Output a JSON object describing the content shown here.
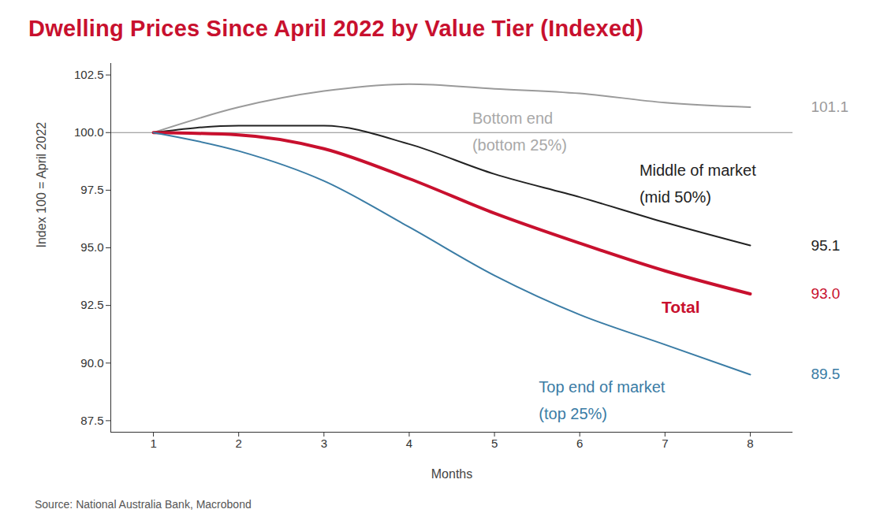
{
  "chart_data": {
    "type": "line",
    "title": "Dwelling Prices Since April 2022 by Value Tier (Indexed)",
    "x_label": "Months",
    "y_label": "Index 100 = April 2022",
    "source": "Source: National Australia Bank, Macrobond",
    "x": [
      1,
      2,
      3,
      4,
      5,
      6,
      7,
      8
    ],
    "xlim": [
      0.5,
      8.5
    ],
    "xticks": [
      1,
      2,
      3,
      4,
      5,
      6,
      7,
      8
    ],
    "ylim": [
      87,
      103
    ],
    "yticks": [
      {
        "value": 87.5,
        "label": "87.5"
      },
      {
        "value": 90,
        "label": "90.0"
      },
      {
        "value": 92.5,
        "label": "92.5"
      },
      {
        "value": 95,
        "label": "95.0"
      },
      {
        "value": 97.5,
        "label": "97.5"
      },
      {
        "value": 100,
        "label": "100.0"
      },
      {
        "value": 102.5,
        "label": "102.5"
      }
    ],
    "reference_line": 100,
    "grid": false,
    "series": [
      {
        "name": "Bottom end (bottom 25%)",
        "color": "#9a9a9a",
        "values": [
          100,
          101.1,
          101.8,
          102.1,
          101.9,
          101.7,
          101.3,
          101.1
        ],
        "end_label": "101.1",
        "label_at": [
          4.74,
          100.6
        ]
      },
      {
        "name": "Middle of market (mid 50%)",
        "color": "#222222",
        "values": [
          100,
          100.3,
          100.3,
          99.5,
          98.2,
          97.2,
          96.1,
          95.1
        ],
        "end_label": "95.1",
        "label_at": [
          6.7,
          98.35
        ]
      },
      {
        "name": "Total",
        "color": "#c8102e",
        "values": [
          100,
          99.9,
          99.3,
          98.0,
          96.5,
          95.2,
          94.0,
          93.0
        ],
        "end_label": "93.0",
        "label_at": [
          6.96,
          92.4
        ]
      },
      {
        "name": "Top end of market (top 25%)",
        "color": "#3a7ca5",
        "values": [
          100,
          99.2,
          97.9,
          95.9,
          93.8,
          92.1,
          90.8,
          89.5
        ],
        "end_label": "89.5",
        "label_at": [
          5.52,
          88.95
        ]
      }
    ]
  }
}
